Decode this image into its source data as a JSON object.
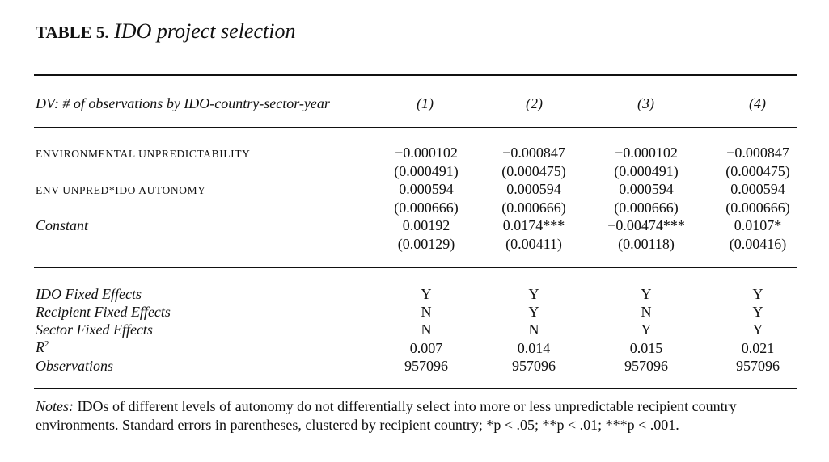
{
  "title": {
    "lead": "TABLE 5.",
    "text": "IDO project selection"
  },
  "header": {
    "dv_label": "DV: # of observations by IDO-country-sector-year",
    "columns": [
      "(1)",
      "(2)",
      "(3)",
      "(4)"
    ]
  },
  "rows": [
    {
      "label": "ENVIRONMENTAL UNPREDICTABILITY",
      "coef": [
        "−0.000102",
        "−0.000847",
        "−0.000102",
        "−0.000847"
      ],
      "se": [
        "(0.000491)",
        "(0.000475)",
        "(0.000491)",
        "(0.000475)"
      ]
    },
    {
      "label": "ENV UNPRED*IDO AUTONOMY",
      "coef": [
        "0.000594",
        "0.000594",
        "0.000594",
        "0.000594"
      ],
      "se": [
        "(0.000666)",
        "(0.000666)",
        "(0.000666)",
        "(0.000666)"
      ]
    },
    {
      "label": "Constant",
      "coef": [
        "0.00192",
        "0.0174***",
        "−0.00474***",
        "0.0107*"
      ],
      "se": [
        "(0.00129)",
        "(0.00411)",
        "(0.00118)",
        "(0.00416)"
      ]
    }
  ],
  "stats": [
    {
      "label": "IDO Fixed Effects",
      "values": [
        "Y",
        "Y",
        "Y",
        "Y"
      ]
    },
    {
      "label": "Recipient Fixed Effects",
      "values": [
        "N",
        "Y",
        "N",
        "Y"
      ]
    },
    {
      "label": "Sector Fixed Effects",
      "values": [
        "N",
        "N",
        "Y",
        "Y"
      ]
    },
    {
      "label": "R",
      "sup": "2",
      "values": [
        "0.007",
        "0.014",
        "0.015",
        "0.021"
      ]
    },
    {
      "label": "Observations",
      "values": [
        "957096",
        "957096",
        "957096",
        "957096"
      ]
    }
  ],
  "notes": {
    "lead": "Notes:",
    "text": "IDOs of different levels of autonomy do not differentially select into more or less unpredictable recipient country environments. Standard errors in parentheses, clustered by recipient country; *p < .05; **p < .01; ***p < .001."
  }
}
